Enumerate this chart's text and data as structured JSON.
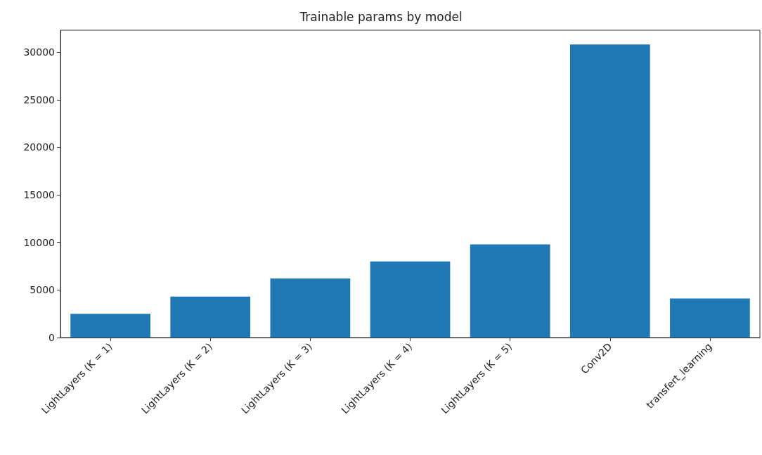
{
  "chart_data": {
    "type": "bar",
    "title": "Trainable params by model",
    "categories": [
      "LightLayers (K = 1)",
      "LightLayers (K = 2)",
      "LightLayers (K = 3)",
      "LightLayers (K = 4)",
      "LightLayers (K = 5)",
      "Conv2D",
      "transfert_learning"
    ],
    "values": [
      2500,
      4300,
      6200,
      8000,
      9800,
      30800,
      4100
    ],
    "color": "#1f77b4",
    "ylim": [
      0,
      32300
    ],
    "yticks": [
      0,
      5000,
      10000,
      15000,
      20000,
      25000,
      30000
    ],
    "grid": false
  }
}
